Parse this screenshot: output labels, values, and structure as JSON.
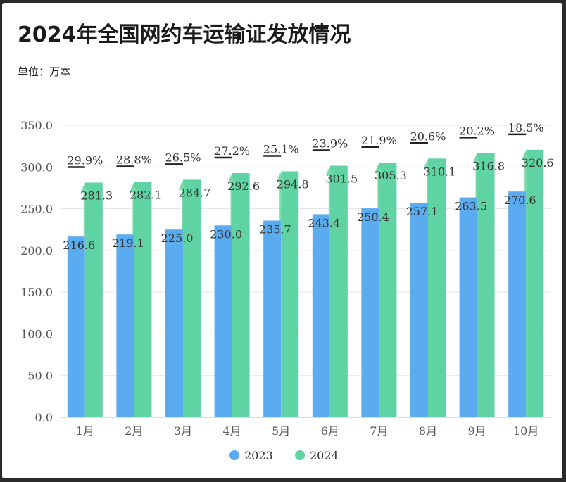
{
  "title": "2024年全国网约车运输证发放情况",
  "unit_label": "单位：万本",
  "colors": {
    "2023": "#5aabef",
    "2024": "#5fd3a3",
    "grid": "#e3e3e3",
    "axis_text": "#555555",
    "arrow": "#7ad9a8",
    "label_text": "#333333"
  },
  "chart_data": {
    "type": "bar",
    "categories": [
      "1月",
      "2月",
      "3月",
      "4月",
      "5月",
      "6月",
      "7月",
      "8月",
      "9月",
      "10月"
    ],
    "series": [
      {
        "name": "2023",
        "values": [
          216.6,
          219.1,
          225.0,
          230.0,
          235.7,
          243.4,
          250.4,
          257.1,
          263.5,
          270.6
        ]
      },
      {
        "name": "2024",
        "values": [
          281.3,
          282.1,
          284.7,
          292.6,
          294.8,
          301.5,
          305.3,
          310.1,
          316.8,
          320.6
        ]
      }
    ],
    "growth_labels": [
      "29.9%",
      "28.8%",
      "26.5%",
      "27.2%",
      "25.1%",
      "23.9%",
      "21.9%",
      "20.6%",
      "20.2%",
      "18.5%"
    ],
    "y_ticks": [
      "0.0",
      "50.0",
      "100.0",
      "150.0",
      "200.0",
      "250.0",
      "300.0",
      "350.0"
    ],
    "ylim": [
      0,
      350
    ],
    "value_labels_2023": [
      "216.6",
      "219.1",
      "225.0",
      "230.0",
      "235.7",
      "243.4",
      "250.4",
      "257.1",
      "263.5",
      "270.6"
    ],
    "value_labels_2024": [
      "281.3",
      "282.1",
      "284.7",
      "292.6",
      "294.8",
      "301.5",
      "305.3",
      "310.1",
      "316.8",
      "320.6"
    ],
    "legend": {
      "position": "bottom-center",
      "items": [
        "2023",
        "2024"
      ]
    },
    "grid": true,
    "xlabel": "",
    "ylabel": ""
  }
}
